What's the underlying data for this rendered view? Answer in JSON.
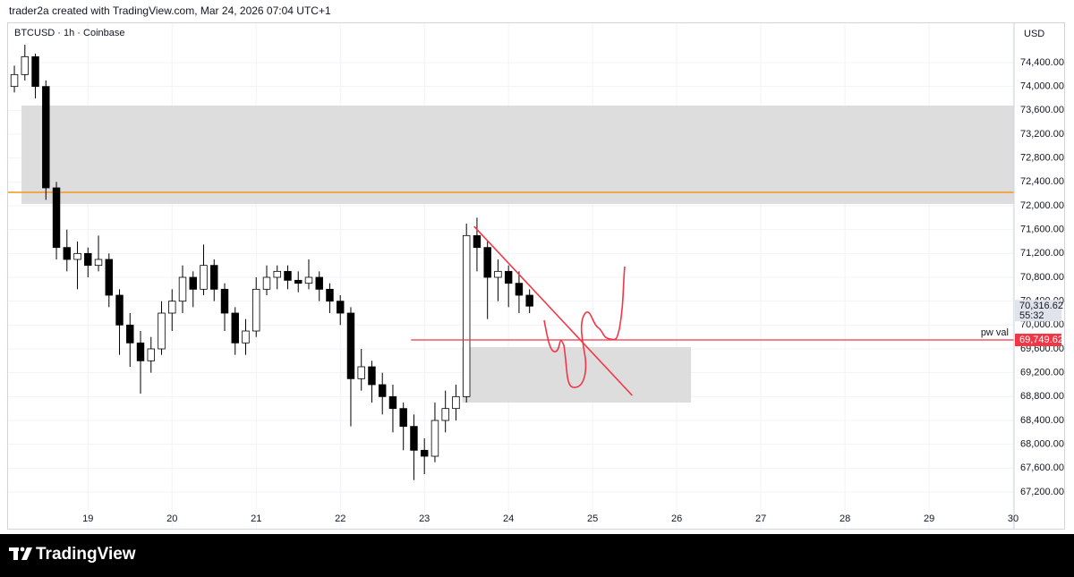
{
  "header": {
    "attribution": "trader2a created with TradingView.com, Mar 24, 2026 07:04 UTC+1"
  },
  "chart_data": {
    "type": "candlestick",
    "title": "BTCUSD · 1h · Coinbase",
    "y_axis_label": "USD",
    "x": [
      18.125,
      18.25,
      18.375,
      18.5,
      18.625,
      18.75,
      18.875,
      19.0,
      19.125,
      19.25,
      19.375,
      19.5,
      19.625,
      19.75,
      19.875,
      20.0,
      20.125,
      20.25,
      20.375,
      20.5,
      20.625,
      20.75,
      20.875,
      21.0,
      21.125,
      21.25,
      21.375,
      21.5,
      21.625,
      21.75,
      21.875,
      22.0,
      22.125,
      22.25,
      22.375,
      22.5,
      22.625,
      22.75,
      22.875,
      23.0,
      23.125,
      23.25,
      23.375,
      23.5,
      23.625,
      23.75,
      23.875,
      24.0,
      24.125,
      24.25
    ],
    "open": [
      74000,
      74200,
      74500,
      74000,
      72300,
      71300,
      71100,
      71200,
      71000,
      71100,
      70500,
      70000,
      69700,
      69400,
      69600,
      70200,
      70400,
      70800,
      70600,
      71000,
      70600,
      70200,
      69700,
      69900,
      70600,
      70800,
      70900,
      70750,
      70700,
      70800,
      70600,
      70400,
      70200,
      69100,
      69300,
      69000,
      68800,
      68600,
      68300,
      67900,
      67800,
      68400,
      68600,
      68800,
      71500,
      71300,
      70800,
      70900,
      70700,
      70500
    ],
    "high": [
      74350,
      74700,
      74550,
      74100,
      72400,
      71600,
      71400,
      71300,
      71500,
      71200,
      70600,
      70200,
      69900,
      69800,
      70400,
      70600,
      71000,
      70900,
      71350,
      71100,
      70700,
      70300,
      70100,
      70800,
      71000,
      71000,
      71000,
      70900,
      71100,
      70900,
      70700,
      70500,
      70300,
      69600,
      69400,
      69200,
      69000,
      68700,
      68500,
      68100,
      68700,
      68900,
      69000,
      71700,
      71800,
      71400,
      71100,
      71000,
      70900,
      70600
    ],
    "low": [
      73900,
      74100,
      73800,
      72100,
      71100,
      70900,
      70600,
      70800,
      70900,
      70300,
      69500,
      69300,
      68850,
      69200,
      69500,
      69900,
      70200,
      70300,
      70500,
      70400,
      69900,
      69500,
      69500,
      69800,
      70500,
      70600,
      70600,
      70550,
      70600,
      70400,
      70200,
      70000,
      68300,
      68900,
      68700,
      68500,
      68200,
      67900,
      67400,
      67500,
      67700,
      68200,
      68400,
      68700,
      70900,
      70100,
      70400,
      70300,
      70200,
      70200
    ],
    "close": [
      74200,
      74500,
      74000,
      72300,
      71300,
      71100,
      71200,
      71000,
      71100,
      70500,
      70000,
      69700,
      69400,
      69600,
      70200,
      70400,
      70800,
      70600,
      71000,
      70600,
      70200,
      69700,
      69900,
      70600,
      70800,
      70900,
      70750,
      70700,
      70800,
      70600,
      70400,
      70200,
      69100,
      69300,
      69000,
      68800,
      68600,
      68300,
      67900,
      67800,
      68400,
      68600,
      68800,
      71500,
      71300,
      70800,
      70900,
      70700,
      70500,
      70316.62
    ],
    "up_color": "#ffffff",
    "down_color": "#000000",
    "xlim": [
      18.05,
      30.01
    ],
    "ylim": [
      66585,
      75045
    ],
    "xticks": [
      19,
      20,
      21,
      22,
      23,
      24,
      25,
      26,
      27,
      28,
      29,
      30
    ],
    "yticks": [
      {
        "value": 67200,
        "label": "67,200.00"
      },
      {
        "value": 67600,
        "label": "67,600.00"
      },
      {
        "value": 68000,
        "label": "68,000.00"
      },
      {
        "value": 68400,
        "label": "68,400.00"
      },
      {
        "value": 68800,
        "label": "68,800.00"
      },
      {
        "value": 69200,
        "label": "69,200.00"
      },
      {
        "value": 69600,
        "label": "69,600.00"
      },
      {
        "value": 70000,
        "label": "70,000.00"
      },
      {
        "value": 70400,
        "label": "70,400.00"
      },
      {
        "value": 70800,
        "label": "70,800.00"
      },
      {
        "value": 71200,
        "label": "71,200.00"
      },
      {
        "value": 71600,
        "label": "71,600.00"
      },
      {
        "value": 72000,
        "label": "72,000.00"
      },
      {
        "value": 72400,
        "label": "72,400.00"
      },
      {
        "value": 72800,
        "label": "72,800.00"
      },
      {
        "value": 73200,
        "label": "73,200.00"
      },
      {
        "value": 73600,
        "label": "73,600.00"
      },
      {
        "value": 74000,
        "label": "74,000.00"
      },
      {
        "value": 74400,
        "label": "74,400.00"
      }
    ],
    "grid": true,
    "zones": [
      {
        "y0": 72030,
        "y1": 73680,
        "x0": 18.21,
        "color": "#dddddd"
      },
      {
        "y0": 68700,
        "y1": 69630,
        "x0": 23.45,
        "x1": 26.17,
        "color": "#dddddd"
      }
    ],
    "levels": [
      {
        "value": 72225,
        "color": "#f7931a"
      }
    ],
    "pw_val": {
      "label": "pw val",
      "value": 69749.62,
      "value_label": "69,749.62",
      "x0": 22.84,
      "color": "#f23645"
    },
    "trendline": {
      "x": [
        23.59,
        25.47
      ],
      "y": [
        71655,
        68820
      ],
      "color": "#f23645"
    },
    "last_price": {
      "value": 70316.62,
      "value_label": "70,316.62",
      "countdown": "55:32"
    }
  },
  "footer": {
    "brand": "TradingView"
  }
}
